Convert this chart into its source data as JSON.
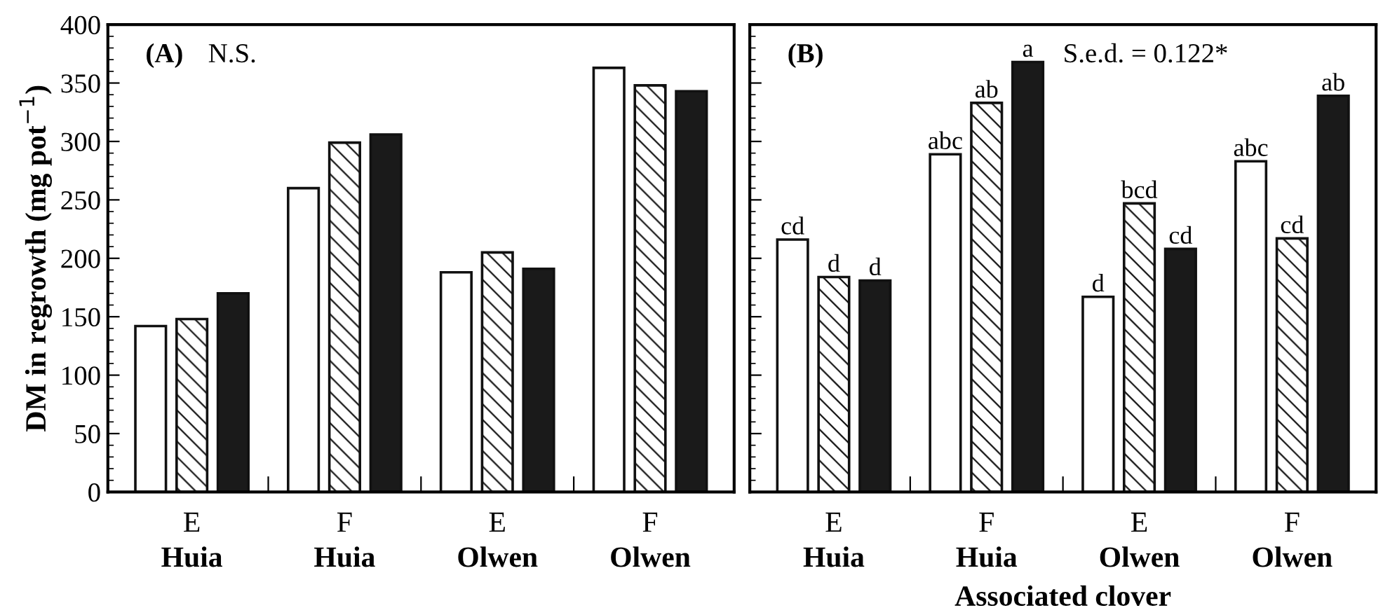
{
  "chart_data": [
    {
      "type": "bar",
      "categories": [
        "E\nHuia",
        "F\nHuia",
        "E\nOlwen",
        "F\nOlwen"
      ],
      "ylabel": "DM in regrowth (mg pot$^{−1}$)",
      "ylim": [
        0,
        400
      ],
      "yticks": [
        0,
        50,
        100,
        150,
        200,
        250,
        300,
        350,
        400
      ],
      "annotations": [
        "(A)",
        "N.S."
      ],
      "series": [
        {
          "color": "#ffffff",
          "values": [
            142,
            260,
            188,
            363
          ]
        },
        {
          "color": "#111111",
          "values": [
            148,
            299,
            205,
            348
          ]
        },
        {
          "color": "#1a1a1a",
          "values": [
            170,
            306,
            191,
            343
          ]
        }
      ]
    },
    {
      "type": "bar",
      "categories": [
        "E\nHuia",
        "F\nHuia",
        "E\nOlwen",
        "F\nOlwen"
      ],
      "xlabel": "Associated clover",
      "ylim": [
        0,
        400
      ],
      "yticks": [
        0,
        50,
        100,
        150,
        200,
        250,
        300,
        350,
        400
      ],
      "tick_labels": "x",
      "annotations": [
        "(B)",
        "S.e.d. = 0.122*"
      ],
      "series": [
        {
          "color": "#ffffff",
          "values": [
            216,
            289,
            167,
            283
          ],
          "value_labels": [
            "cd",
            "abc",
            "d",
            "abc"
          ]
        },
        {
          "color": "#111111",
          "values": [
            184,
            333,
            247,
            217
          ],
          "value_labels": [
            "d",
            "ab",
            "bcd",
            "cd"
          ]
        },
        {
          "color": "#1a1a1a",
          "values": [
            181,
            368,
            208,
            339
          ],
          "value_labels": [
            "d",
            "a",
            "cd",
            "ab"
          ]
        }
      ]
    }
  ]
}
